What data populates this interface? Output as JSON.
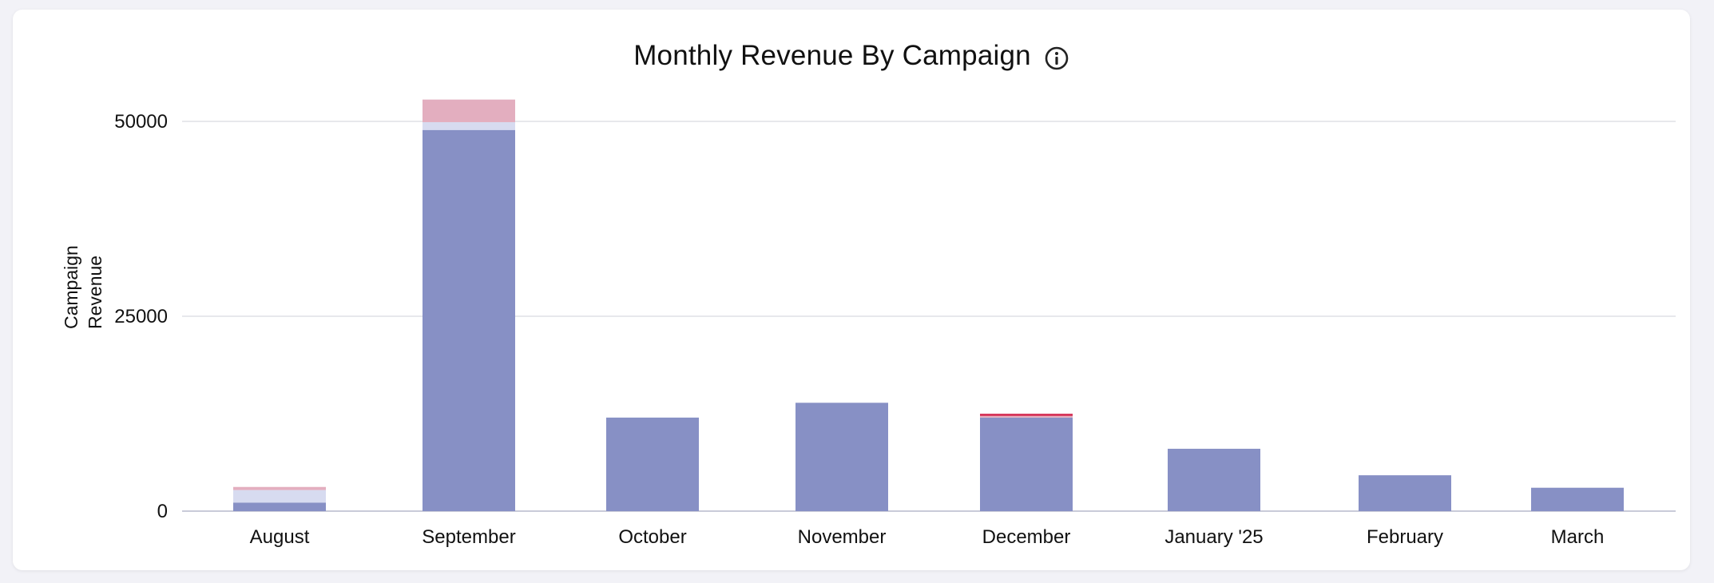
{
  "chart_data": {
    "type": "bar",
    "stacked": true,
    "title": "Monthly Revenue By Campaign",
    "ylabel": "Campaign Revenue",
    "xlabel": "",
    "categories": [
      "August",
      "September",
      "October",
      "November",
      "December",
      "January '25",
      "February",
      "March"
    ],
    "yticks": [
      0,
      25000,
      50000
    ],
    "ylim": [
      0,
      55000
    ],
    "grid": true,
    "series": [
      {
        "color": "#8790c5",
        "values": [
          1100,
          48900,
          12000,
          13900,
          12000,
          8000,
          4600,
          3000
        ]
      },
      {
        "color": "#d7dbf0",
        "values": [
          1600,
          1000,
          0,
          0,
          0,
          0,
          0,
          0
        ]
      },
      {
        "color": "#e3aebf",
        "values": [
          400,
          2900,
          0,
          0,
          200,
          0,
          0,
          0
        ]
      },
      {
        "color": "#d6385c",
        "values": [
          0,
          0,
          0,
          0,
          300,
          0,
          0,
          0
        ]
      }
    ]
  }
}
